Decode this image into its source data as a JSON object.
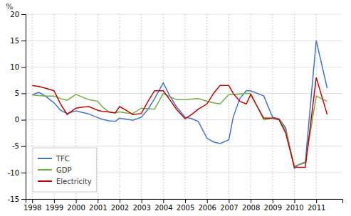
{
  "chart_data": {
    "type": "line",
    "y_label": "%",
    "xlim": [
      1997.7,
      2012.2
    ],
    "xticks": [
      1998,
      1999,
      2000,
      2001,
      2002,
      2003,
      2004,
      2005,
      2006,
      2007,
      2008,
      2009,
      2010,
      2011
    ],
    "ylim": [
      -15,
      20
    ],
    "yticks": [
      -15,
      -10,
      -5,
      0,
      5,
      10,
      15,
      20
    ],
    "grid": true,
    "legend": "lower left",
    "x": [
      1998.0,
      1998.3,
      1998.6,
      1999.0,
      1999.3,
      1999.6,
      2000.0,
      2000.3,
      2000.6,
      2001.0,
      2001.2,
      2001.5,
      2001.8,
      2002.0,
      2002.3,
      2002.6,
      2003.0,
      2003.3,
      2003.6,
      2004.0,
      2004.3,
      2004.6,
      2005.0,
      2005.3,
      2005.6,
      2006.0,
      2006.3,
      2006.6,
      2007.0,
      2007.2,
      2007.5,
      2007.8,
      2008.0,
      2008.3,
      2008.6,
      2009.0,
      2009.3,
      2009.6,
      2010.0,
      2010.2,
      2010.5,
      2011.0,
      2011.5
    ],
    "series": [
      {
        "name": "TFC",
        "color": "#4472C4",
        "values": [
          4.7,
          5.2,
          4.5,
          3.2,
          1.8,
          1.2,
          1.7,
          1.4,
          1.1,
          0.4,
          0.1,
          -0.2,
          -0.3,
          0.3,
          0.1,
          -0.1,
          0.5,
          2.0,
          4.0,
          7.0,
          4.5,
          2.5,
          0.5,
          0.2,
          -0.3,
          -3.5,
          -4.2,
          -4.5,
          -3.8,
          0.5,
          4.0,
          5.5,
          5.5,
          5.0,
          4.5,
          0.5,
          0.2,
          -1.5,
          -9.2,
          -8.5,
          -8.0,
          15.0,
          6.0
        ]
      },
      {
        "name": "GDP",
        "color": "#70AD47",
        "values": [
          4.7,
          4.6,
          4.5,
          4.5,
          4.0,
          3.7,
          4.8,
          4.3,
          3.8,
          3.5,
          2.5,
          1.5,
          1.3,
          1.5,
          1.3,
          1.2,
          2.2,
          2.1,
          2.0,
          5.0,
          4.4,
          3.8,
          3.8,
          3.9,
          4.0,
          3.5,
          3.2,
          3.0,
          4.8,
          4.8,
          4.9,
          5.0,
          5.0,
          2.5,
          0.0,
          0.3,
          0.1,
          -2.0,
          -8.8,
          -8.5,
          -8.2,
          4.5,
          3.5
        ]
      },
      {
        "name": "Electricity",
        "color": "#C00000",
        "values": [
          6.5,
          6.3,
          6.0,
          5.5,
          3.0,
          1.0,
          2.2,
          2.4,
          2.5,
          1.8,
          1.6,
          1.5,
          1.3,
          2.5,
          1.8,
          1.0,
          1.2,
          3.5,
          5.5,
          5.5,
          3.8,
          2.0,
          0.2,
          1.0,
          2.0,
          3.0,
          5.0,
          6.5,
          6.5,
          5.0,
          3.5,
          3.0,
          4.8,
          2.5,
          0.3,
          0.3,
          0.0,
          -2.5,
          -9.0,
          -9.0,
          -9.0,
          8.0,
          1.0
        ]
      }
    ]
  }
}
